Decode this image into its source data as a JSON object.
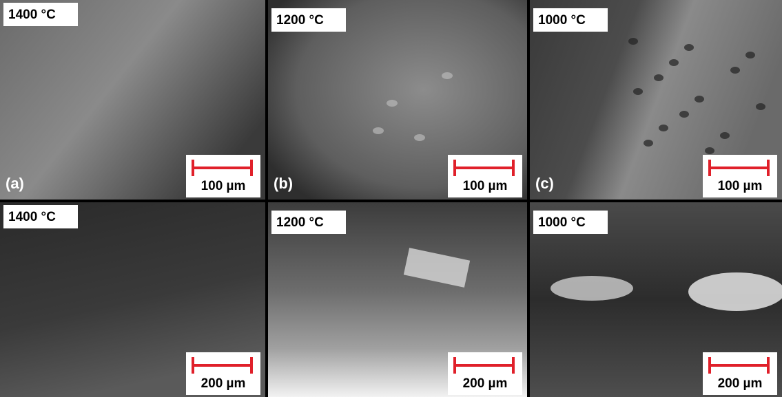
{
  "panels": [
    {
      "temperature": "1400 °C",
      "letter": "(a)",
      "scale": "100 µm"
    },
    {
      "temperature": "1200 °C",
      "letter": "(b)",
      "scale": "100 µm"
    },
    {
      "temperature": "1000 °C",
      "letter": "(c)",
      "scale": "100 µm"
    },
    {
      "temperature": "1400 °C",
      "scale": "200 µm"
    },
    {
      "temperature": "1200 °C",
      "scale": "200 µm"
    },
    {
      "temperature": "1000 °C",
      "scale": "200 µm"
    }
  ]
}
